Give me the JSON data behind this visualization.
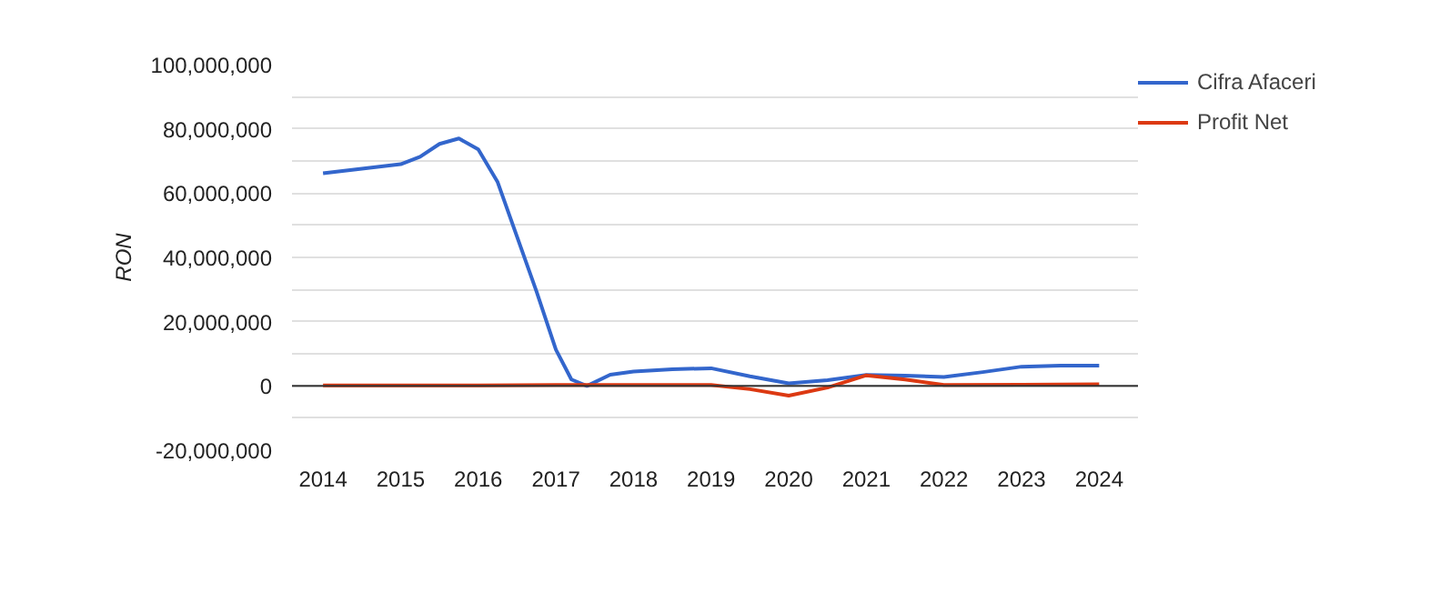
{
  "chart_data": {
    "type": "line",
    "ylabel": "RON",
    "series": [
      {
        "name": "Cifra Afaceri",
        "color": "#3366cc",
        "x": [
          2014,
          2015,
          2015.25,
          2015.5,
          2015.75,
          2016,
          2016.25,
          2016.5,
          2016.75,
          2017,
          2017.2,
          2017.4,
          2017.7,
          2018,
          2018.5,
          2019,
          2019.5,
          2020,
          2020.5,
          2021,
          2021.5,
          2022,
          2022.5,
          2023,
          2023.5,
          2024
        ],
        "values": [
          66200000,
          69000000,
          71300000,
          75300000,
          77000000,
          73600000,
          63400000,
          46400000,
          29400000,
          11300000,
          2000000,
          0,
          3500000,
          4500000,
          5200000,
          5500000,
          3000000,
          800000,
          1800000,
          3400000,
          3200000,
          2800000,
          4300000,
          6000000,
          6300000,
          6300000
        ]
      },
      {
        "name": "Profit Net",
        "color": "#dc3912",
        "x": [
          2014,
          2015,
          2016,
          2017,
          2018,
          2019,
          2019.5,
          2020,
          2020.5,
          2021,
          2021.5,
          2022,
          2023,
          2024
        ],
        "values": [
          200000,
          200000,
          200000,
          300000,
          300000,
          300000,
          -1000000,
          -3000000,
          -500000,
          3300000,
          2000000,
          300000,
          400000,
          500000
        ]
      }
    ],
    "xlim": [
      2013.6,
      2024.5
    ],
    "xticks": [
      2014,
      2015,
      2016,
      2017,
      2018,
      2019,
      2020,
      2021,
      2022,
      2023,
      2024
    ],
    "ylim": [
      -20000000,
      100000000
    ],
    "yticks": [
      {
        "value": -20000000,
        "label": "-20,000,000"
      },
      {
        "value": -10000000,
        "label": null
      },
      {
        "value": 0,
        "label": "0"
      },
      {
        "value": 10000000,
        "label": null
      },
      {
        "value": 20000000,
        "label": "20,000,000"
      },
      {
        "value": 30000000,
        "label": null
      },
      {
        "value": 40000000,
        "label": "40,000,000"
      },
      {
        "value": 50000000,
        "label": null
      },
      {
        "value": 60000000,
        "label": "60,000,000"
      },
      {
        "value": 70000000,
        "label": null
      },
      {
        "value": 80000000,
        "label": "80,000,000"
      },
      {
        "value": 90000000,
        "label": null
      },
      {
        "value": 100000000,
        "label": "100,000,000"
      }
    ],
    "ref_lines": [
      {
        "axis": "y",
        "value": 0,
        "color": "#333333"
      }
    ],
    "grid": "y",
    "legend": "top right",
    "marker": "none",
    "line_style": "solid"
  }
}
